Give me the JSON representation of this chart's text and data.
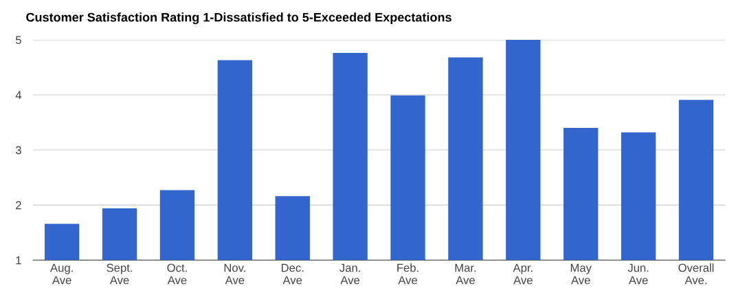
{
  "chart_data": {
    "type": "bar",
    "title": "Customer Satisfaction Rating 1-Dissatisfied to 5-Exceeded Expectations",
    "categories": [
      "Aug.\nAve",
      "Sept.\nAve",
      "Oct.\nAve",
      "Nov.\nAve",
      "Dec.\nAve",
      "Jan.\nAve",
      "Feb.\nAve",
      "Mar.\nAve",
      "Apr.\nAve",
      "May\nAve",
      "Jun.\nAve",
      "Overall\nAve."
    ],
    "values": [
      1.66,
      1.94,
      2.27,
      4.63,
      2.16,
      4.76,
      3.99,
      4.68,
      5.0,
      3.4,
      3.32,
      3.91
    ],
    "color": "#3366cc",
    "ylim": [
      1,
      5
    ],
    "yticks": [
      1,
      2,
      3,
      4,
      5
    ],
    "grid": "y"
  }
}
